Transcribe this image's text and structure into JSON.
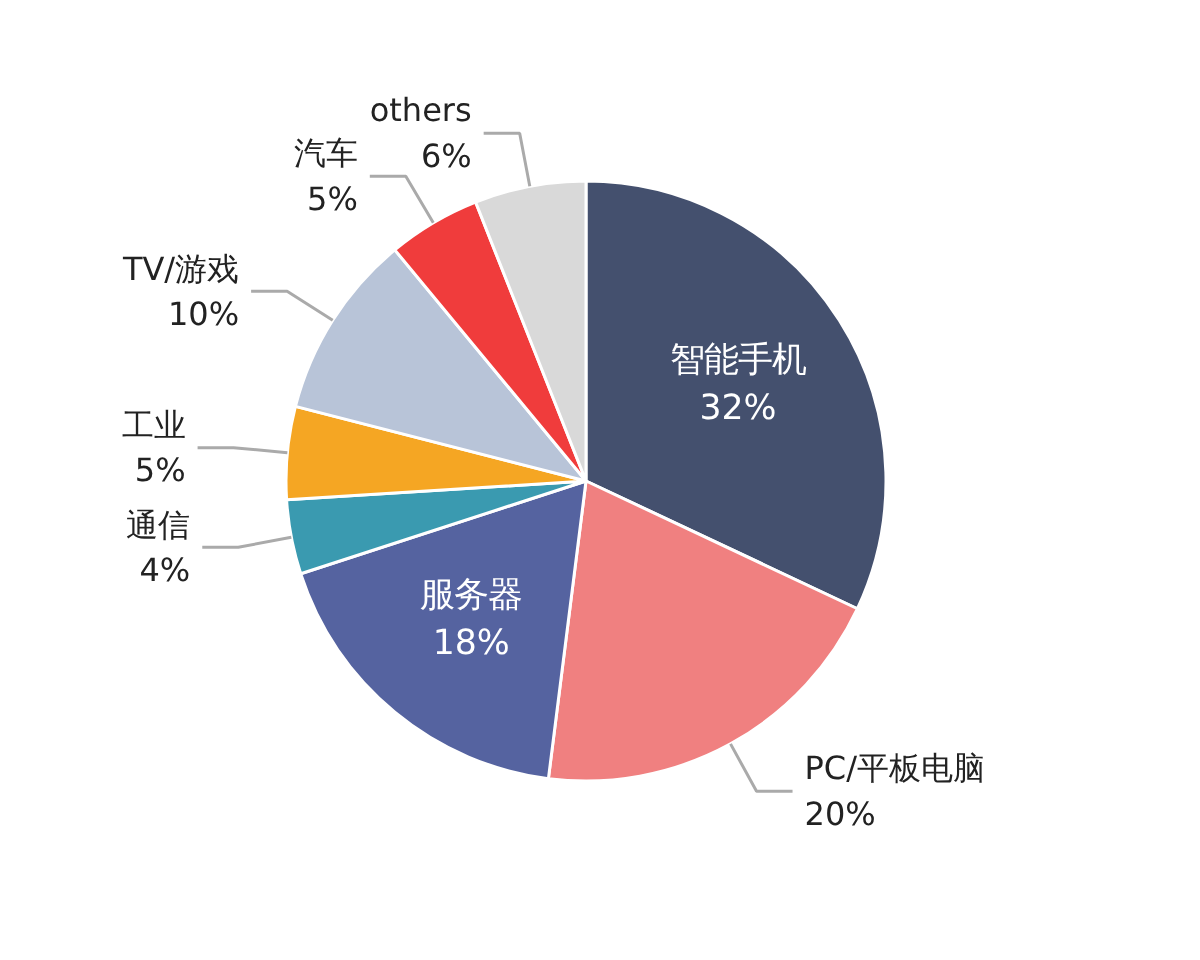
{
  "chart_data": {
    "type": "pie",
    "categories": [
      "智能手机",
      "PC/平板电脑",
      "服务器",
      "通信",
      "工业",
      "TV/游戏",
      "汽车",
      "others"
    ],
    "values": [
      32,
      20,
      18,
      4,
      5,
      10,
      5,
      6
    ],
    "colors": [
      "#44506e",
      "#f08080",
      "#5563a0",
      "#3a9ab0",
      "#f5a623",
      "#b8c4d8",
      "#f03c3c",
      "#d9d9d9"
    ],
    "value_labels": [
      "32%",
      "20%",
      "18%",
      "4%",
      "5%",
      "10%",
      "5%",
      "6%"
    ],
    "legend": false
  }
}
